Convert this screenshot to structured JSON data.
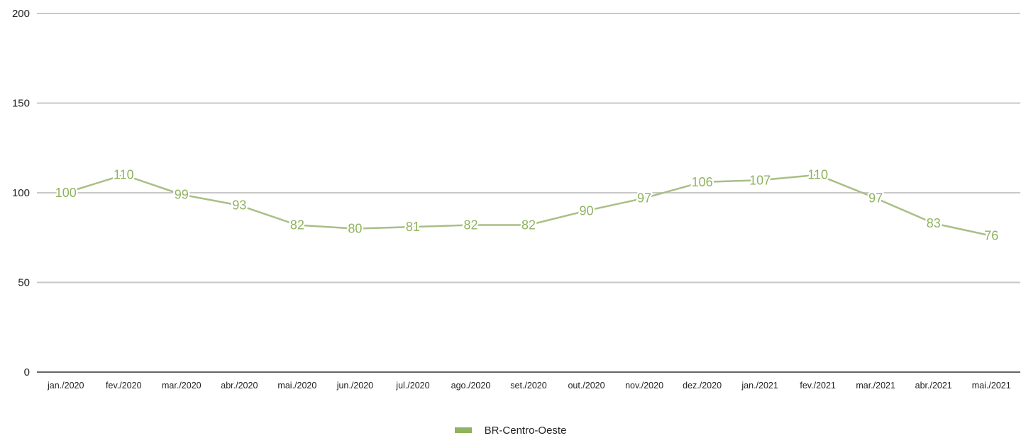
{
  "chart_data": {
    "type": "line",
    "categories": [
      "jan./2020",
      "fev./2020",
      "mar./2020",
      "abr./2020",
      "mai./2020",
      "jun./2020",
      "jul./2020",
      "ago./2020",
      "set./2020",
      "out./2020",
      "nov./2020",
      "dez./2020",
      "jan./2021",
      "fev./2021",
      "mar./2021",
      "abr./2021",
      "mai./2021"
    ],
    "series": [
      {
        "name": "BR-Centro-Oeste",
        "values": [
          100,
          110,
          99,
          93,
          82,
          80,
          81,
          82,
          82,
          90,
          97,
          106,
          107,
          110,
          97,
          83,
          76
        ]
      }
    ],
    "y_ticks": [
      0,
      50,
      100,
      150,
      200
    ],
    "ylim": [
      0,
      200
    ],
    "grid": true,
    "data_labels": true,
    "legend_position": "bottom-center",
    "colors": {
      "line": "#a8bf86",
      "legend": "#8fb35e",
      "label": "#8fb35e",
      "grid": "#c8c8c8",
      "axis": "#333333"
    }
  }
}
